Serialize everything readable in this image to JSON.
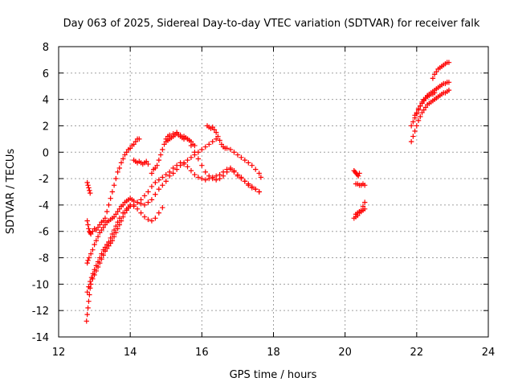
{
  "chart_data": {
    "type": "scatter",
    "title": "Day 063 of 2025, Sidereal Day-to-day VTEC variation (SDTVAR) for receiver falk",
    "xlabel": "GPS time / hours",
    "ylabel": "SDTVAR / TECUs",
    "xlim": [
      12,
      24
    ],
    "ylim": [
      -14,
      8
    ],
    "xticks": [
      "12",
      "14",
      "16",
      "18",
      "20",
      "22",
      "24"
    ],
    "yticks": [
      "-14",
      "-12",
      "-10",
      "-8",
      "-6",
      "-4",
      "-2",
      "0",
      "2",
      "4",
      "6",
      "8"
    ],
    "grid": true,
    "legend": "none",
    "marker": "plus",
    "color": "#ff0000",
    "series": [
      {
        "x": [
          12.8,
          12.82,
          12.84,
          12.86,
          12.88
        ],
        "y": [
          -2.3,
          -2.5,
          -2.7,
          -2.9,
          -3.1
        ]
      },
      {
        "x": [
          12.8,
          12.82,
          12.84,
          12.86,
          12.88,
          12.9,
          12.95,
          13.0,
          13.05,
          13.1,
          13.15,
          13.2,
          13.25,
          13.3,
          13.35,
          13.4,
          13.45,
          13.5,
          13.55,
          13.6,
          13.65,
          13.7,
          13.75,
          13.8,
          13.85,
          13.9,
          13.95,
          14.0,
          14.05,
          14.1,
          14.15,
          14.2,
          14.25
        ],
        "y": [
          -5.2,
          -5.5,
          -5.8,
          -6.0,
          -6.1,
          -6.2,
          -6.0,
          -5.8,
          -5.9,
          -5.7,
          -5.5,
          -5.3,
          -5.2,
          -5.0,
          -4.5,
          -4.0,
          -3.5,
          -3.0,
          -2.5,
          -2.0,
          -1.5,
          -1.2,
          -0.8,
          -0.5,
          -0.2,
          0.0,
          0.2,
          0.3,
          0.5,
          0.6,
          0.8,
          1.0,
          1.0
        ]
      },
      {
        "x": [
          12.8,
          12.82,
          12.85,
          12.9,
          12.95,
          13.0,
          13.05,
          13.1,
          13.15,
          13.2,
          13.25,
          13.3,
          13.35,
          13.4,
          13.45,
          13.5,
          13.55,
          13.6,
          13.65,
          13.7,
          13.75,
          13.8,
          13.85,
          13.9,
          13.95,
          14.0,
          14.05,
          14.1,
          14.2,
          14.3,
          14.4,
          14.5,
          14.6,
          14.7,
          14.8,
          14.9,
          15.0,
          15.1,
          15.2,
          15.3,
          15.4,
          15.5,
          15.6,
          15.7,
          15.8,
          15.9,
          16.0,
          16.1,
          16.2,
          16.3,
          16.4
        ],
        "y": [
          -8.4,
          -8.2,
          -8.0,
          -7.7,
          -7.4,
          -7.0,
          -6.7,
          -6.4,
          -6.1,
          -5.9,
          -5.7,
          -5.5,
          -5.3,
          -5.2,
          -5.1,
          -5.0,
          -4.9,
          -4.7,
          -4.5,
          -4.3,
          -4.1,
          -4.0,
          -3.8,
          -3.7,
          -3.6,
          -3.5,
          -3.6,
          -3.7,
          -3.8,
          -3.9,
          -4.0,
          -3.8,
          -3.6,
          -3.2,
          -2.8,
          -2.5,
          -2.2,
          -1.8,
          -1.6,
          -1.3,
          -1.0,
          -0.8,
          -0.6,
          -0.4,
          -0.2,
          0.0,
          0.2,
          0.4,
          0.6,
          0.8,
          1.0
        ]
      },
      {
        "x": [
          12.78,
          12.8,
          12.82,
          12.84,
          12.86,
          12.88,
          12.9,
          12.95,
          13.0,
          13.05,
          13.1,
          13.15,
          13.2,
          13.25,
          13.3,
          13.35,
          13.4,
          13.45,
          13.5,
          13.55,
          13.6,
          13.65,
          13.7,
          13.75,
          13.8,
          13.85,
          13.9,
          13.95,
          14.0,
          14.1,
          14.2,
          14.3,
          14.4,
          14.5,
          14.6,
          14.7,
          14.8,
          14.9
        ],
        "y": [
          -12.8,
          -12.3,
          -11.8,
          -11.3,
          -10.8,
          -10.3,
          -10.0,
          -9.6,
          -9.3,
          -9.0,
          -8.7,
          -8.4,
          -8.1,
          -7.8,
          -7.5,
          -7.3,
          -7.1,
          -6.9,
          -6.7,
          -6.4,
          -6.1,
          -5.8,
          -5.5,
          -5.2,
          -4.9,
          -4.6,
          -4.4,
          -4.2,
          -4.0,
          -4.1,
          -4.3,
          -4.6,
          -4.9,
          -5.1,
          -5.2,
          -5.0,
          -4.6,
          -4.2
        ]
      },
      {
        "x": [
          12.8,
          12.84,
          12.88,
          12.92,
          12.96,
          13.0,
          13.05,
          13.1,
          13.15,
          13.2,
          13.25,
          13.3,
          13.35,
          13.4,
          13.45,
          13.5,
          13.55,
          13.6,
          13.65,
          13.7,
          13.8,
          13.9,
          14.0,
          14.1,
          14.2,
          14.3,
          14.4,
          14.5,
          14.6,
          14.7,
          14.8,
          14.9,
          15.0,
          15.1,
          15.2,
          15.3,
          15.4,
          15.5,
          15.6,
          15.7,
          15.8,
          15.9,
          16.0,
          16.1,
          16.2,
          16.3,
          16.4,
          16.5,
          16.6,
          16.7,
          16.8,
          16.9,
          17.0,
          17.1,
          17.2,
          17.3,
          17.4,
          17.5,
          17.6
        ],
        "y": [
          -10.6,
          -10.2,
          -9.8,
          -9.5,
          -9.2,
          -8.9,
          -8.6,
          -8.3,
          -8.0,
          -7.7,
          -7.4,
          -7.2,
          -7.0,
          -6.8,
          -6.5,
          -6.2,
          -5.9,
          -5.6,
          -5.3,
          -5.0,
          -4.6,
          -4.3,
          -4.1,
          -4.0,
          -3.8,
          -3.6,
          -3.3,
          -3.0,
          -2.6,
          -2.3,
          -2.1,
          -1.9,
          -1.7,
          -1.5,
          -1.2,
          -1.0,
          -0.8,
          -0.9,
          -1.1,
          -1.4,
          -1.7,
          -1.9,
          -2.0,
          -2.1,
          -2.0,
          -1.9,
          -1.8,
          -1.7,
          -1.5,
          -1.3,
          -1.2,
          -1.4,
          -1.7,
          -1.9,
          -2.2,
          -2.4,
          -2.6,
          -2.8,
          -3.0
        ]
      },
      {
        "x": [
          14.6,
          14.65,
          14.7,
          14.75,
          14.8,
          14.85,
          14.9,
          14.95,
          15.0,
          15.05,
          15.1,
          15.2,
          15.3,
          15.4,
          15.5,
          15.6,
          15.7,
          15.8,
          15.9,
          16.0,
          16.1,
          16.2,
          16.3,
          16.4,
          16.5,
          16.6,
          16.7,
          16.8,
          16.9,
          17.0,
          17.1,
          17.2,
          17.3,
          17.4,
          17.5,
          17.6
        ],
        "y": [
          -1.6,
          -1.3,
          -1.2,
          -1.0,
          -0.6,
          -0.2,
          0.2,
          0.6,
          1.0,
          1.2,
          1.3,
          1.4,
          1.5,
          1.3,
          1.2,
          1.0,
          0.5,
          0.0,
          -0.5,
          -1.0,
          -1.5,
          -1.8,
          -2.0,
          -2.1,
          -2.0,
          -1.8,
          -1.5,
          -1.3,
          -1.5,
          -1.8,
          -2.0,
          -2.2,
          -2.5,
          -2.7,
          -2.8,
          -3.0
        ]
      },
      {
        "x": [
          14.1,
          14.15,
          14.2,
          14.25,
          14.3,
          14.35,
          14.4,
          14.45,
          14.5
        ],
        "y": [
          -0.6,
          -0.7,
          -0.8,
          -0.7,
          -0.8,
          -0.9,
          -0.8,
          -0.7,
          -0.9
        ]
      },
      {
        "x": [
          15.0,
          15.05,
          15.1,
          15.15,
          15.2,
          15.25,
          15.3,
          15.35,
          15.4,
          15.45,
          15.5,
          15.55,
          15.6,
          15.65,
          15.7,
          15.75,
          15.8
        ],
        "y": [
          0.8,
          0.9,
          1.0,
          1.1,
          1.2,
          1.3,
          1.4,
          1.3,
          1.2,
          1.1,
          1.0,
          1.1,
          1.0,
          0.9,
          0.8,
          0.6,
          0.5
        ]
      },
      {
        "x": [
          16.15,
          16.2,
          16.25,
          16.3,
          16.35,
          16.4,
          16.45,
          16.5,
          16.55,
          16.6,
          16.65,
          16.7,
          16.8,
          16.9,
          17.0,
          17.1,
          17.2,
          17.3,
          17.4,
          17.5,
          17.6,
          17.65
        ],
        "y": [
          2.0,
          1.9,
          1.8,
          1.9,
          1.7,
          1.5,
          1.2,
          0.9,
          0.6,
          0.4,
          0.3,
          0.3,
          0.2,
          0.0,
          -0.2,
          -0.4,
          -0.6,
          -0.8,
          -1.0,
          -1.3,
          -1.6,
          -1.9
        ]
      },
      {
        "x": [
          20.25,
          20.28,
          20.31,
          20.34,
          20.37,
          20.4
        ],
        "y": [
          -1.4,
          -1.5,
          -1.6,
          -1.7,
          -1.8,
          -1.6
        ]
      },
      {
        "x": [
          20.3,
          20.35,
          20.4,
          20.45,
          20.5,
          20.55
        ],
        "y": [
          -2.4,
          -2.4,
          -2.5,
          -2.5,
          -2.4,
          -2.5
        ]
      },
      {
        "x": [
          20.25,
          20.3,
          20.35,
          20.4,
          20.45,
          20.5,
          20.55
        ],
        "y": [
          -5.0,
          -4.9,
          -4.8,
          -4.6,
          -4.4,
          -4.1,
          -3.8
        ]
      },
      {
        "x": [
          20.3,
          20.35,
          20.4,
          20.45,
          20.5,
          20.55
        ],
        "y": [
          -4.7,
          -4.6,
          -4.5,
          -4.5,
          -4.4,
          -4.3
        ]
      },
      {
        "x": [
          21.85,
          21.9,
          21.95,
          22.0,
          22.05,
          22.1,
          22.15,
          22.2,
          22.25,
          22.3,
          22.35,
          22.4,
          22.45,
          22.5,
          22.55,
          22.6,
          22.65,
          22.7,
          22.75,
          22.8,
          22.85,
          22.9
        ],
        "y": [
          0.8,
          1.2,
          1.6,
          2.0,
          2.4,
          2.7,
          3.0,
          3.2,
          3.4,
          3.6,
          3.7,
          3.8,
          3.9,
          4.0,
          4.1,
          4.2,
          4.3,
          4.4,
          4.5,
          4.5,
          4.6,
          4.7
        ]
      },
      {
        "x": [
          21.85,
          21.9,
          21.95,
          22.0,
          22.05,
          22.1,
          22.15,
          22.2,
          22.25,
          22.3,
          22.35,
          22.4,
          22.45,
          22.5,
          22.55,
          22.6,
          22.65,
          22.7,
          22.75,
          22.8,
          22.85,
          22.9
        ],
        "y": [
          2.0,
          2.3,
          2.6,
          2.9,
          3.2,
          3.5,
          3.7,
          3.9,
          4.1,
          4.3,
          4.4,
          4.5,
          4.6,
          4.7,
          4.8,
          4.9,
          5.0,
          5.1,
          5.2,
          5.2,
          5.3,
          5.3
        ]
      },
      {
        "x": [
          21.95,
          22.0,
          22.05,
          22.1,
          22.15,
          22.2,
          22.25,
          22.3,
          22.35,
          22.4,
          22.45,
          22.5
        ],
        "y": [
          2.8,
          3.0,
          3.3,
          3.5,
          3.8,
          4.0,
          4.1,
          4.2,
          4.3,
          4.4,
          4.4,
          4.5
        ]
      },
      {
        "x": [
          22.45,
          22.5,
          22.55,
          22.6,
          22.65,
          22.7,
          22.75,
          22.8,
          22.85,
          22.9
        ],
        "y": [
          5.6,
          5.9,
          6.1,
          6.3,
          6.4,
          6.5,
          6.6,
          6.7,
          6.8,
          6.8
        ]
      }
    ]
  }
}
